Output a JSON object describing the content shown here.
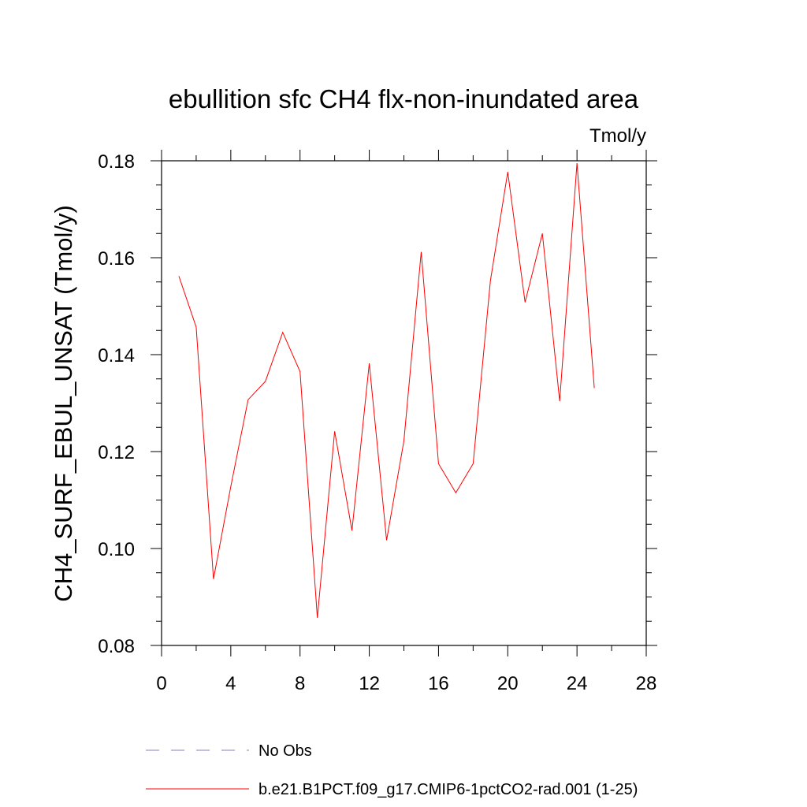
{
  "chart_data": {
    "type": "line",
    "title": "ebullition sfc CH4 flx-non-inundated area",
    "units_label": "Tmol/y",
    "xlabel": "",
    "ylabel": "CH4_SURF_EBUL_UNSAT  (Tmol/y)",
    "xlim": [
      0,
      28
    ],
    "ylim": [
      0.08,
      0.18
    ],
    "x_ticks": [
      0,
      4,
      8,
      12,
      16,
      20,
      24,
      28
    ],
    "x_tick_labels": [
      "0",
      "4",
      "8",
      "12",
      "16",
      "20",
      "24",
      "28"
    ],
    "y_ticks": [
      0.08,
      0.1,
      0.12,
      0.14,
      0.16,
      0.18
    ],
    "y_tick_labels": [
      "0.08",
      "0.10",
      "0.12",
      "0.14",
      "0.16",
      "0.18"
    ],
    "grid": false,
    "legend_position": "bottom",
    "series": [
      {
        "name": "b.e21.B1PCT.f09_g17.CMIP6-1pctCO2-rad.001 (1-25)",
        "color": "#ff0000",
        "style": "solid",
        "x": [
          1,
          2,
          3,
          4,
          5,
          6,
          7,
          8,
          9,
          10,
          11,
          12,
          13,
          14,
          15,
          16,
          17,
          18,
          19,
          20,
          21,
          22,
          23,
          24,
          25
        ],
        "values": [
          0.1562,
          0.1457,
          0.0937,
          0.1128,
          0.1307,
          0.1345,
          0.1446,
          0.1365,
          0.0857,
          0.1242,
          0.1037,
          0.1382,
          0.1017,
          0.1222,
          0.1612,
          0.1175,
          0.1115,
          0.1175,
          0.1553,
          0.1777,
          0.1508,
          0.165,
          0.1304,
          0.1795,
          0.1331
        ]
      }
    ],
    "legend": [
      {
        "label": "No Obs",
        "color": "#8080c8",
        "style": "dashed"
      },
      {
        "label": "b.e21.B1PCT.f09_g17.CMIP6-1pctCO2-rad.001 (1-25)",
        "color": "#ff0000",
        "style": "solid"
      }
    ]
  }
}
